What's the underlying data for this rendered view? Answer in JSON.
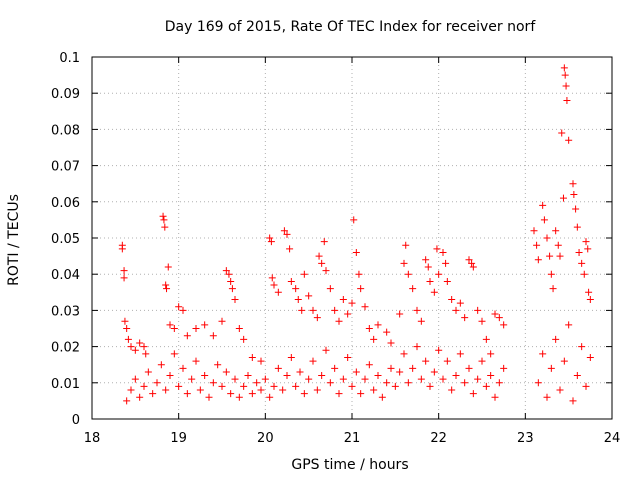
{
  "chart_data": {
    "type": "scatter",
    "title": "Day 169 of 2015, Rate Of TEC Index for receiver norf",
    "xlabel": "GPS time / hours",
    "ylabel": "ROTI / TECUs",
    "xlim": [
      18,
      24
    ],
    "ylim": [
      0,
      0.1
    ],
    "x_ticks": [
      18,
      19,
      20,
      21,
      22,
      23,
      24
    ],
    "x_tick_labels": [
      "18",
      "19",
      "20",
      "21",
      "22",
      "23",
      "24"
    ],
    "y_ticks": [
      0,
      0.01,
      0.02,
      0.03,
      0.04,
      0.05,
      0.06,
      0.07,
      0.08,
      0.09,
      0.1
    ],
    "y_tick_labels": [
      "0",
      "0.01",
      "0.02",
      "0.03",
      "0.04",
      "0.05",
      "0.06",
      "0.07",
      "0.08",
      "0.09",
      "0.1"
    ],
    "grid": true,
    "marker": "plus",
    "marker_color": "#ff0000",
    "series": [
      {
        "name": "ROTI",
        "color": "#ff0000",
        "points": [
          [
            18.35,
            0.048
          ],
          [
            18.35,
            0.047
          ],
          [
            18.37,
            0.041
          ],
          [
            18.37,
            0.039
          ],
          [
            18.38,
            0.027
          ],
          [
            18.4,
            0.025
          ],
          [
            18.42,
            0.022
          ],
          [
            18.45,
            0.02
          ],
          [
            18.5,
            0.019
          ],
          [
            18.55,
            0.021
          ],
          [
            18.6,
            0.02
          ],
          [
            18.62,
            0.018
          ],
          [
            18.82,
            0.056
          ],
          [
            18.83,
            0.055
          ],
          [
            18.84,
            0.053
          ],
          [
            18.85,
            0.037
          ],
          [
            18.86,
            0.036
          ],
          [
            18.88,
            0.042
          ],
          [
            18.9,
            0.026
          ],
          [
            18.95,
            0.025
          ],
          [
            19.0,
            0.031
          ],
          [
            19.05,
            0.03
          ],
          [
            19.1,
            0.023
          ],
          [
            19.2,
            0.025
          ],
          [
            19.3,
            0.026
          ],
          [
            19.4,
            0.023
          ],
          [
            19.5,
            0.027
          ],
          [
            19.55,
            0.041
          ],
          [
            19.58,
            0.04
          ],
          [
            19.6,
            0.038
          ],
          [
            19.62,
            0.036
          ],
          [
            19.65,
            0.033
          ],
          [
            19.7,
            0.025
          ],
          [
            19.75,
            0.022
          ],
          [
            19.85,
            0.017
          ],
          [
            19.95,
            0.016
          ],
          [
            20.05,
            0.05
          ],
          [
            20.07,
            0.049
          ],
          [
            20.08,
            0.039
          ],
          [
            20.1,
            0.037
          ],
          [
            20.15,
            0.035
          ],
          [
            20.22,
            0.052
          ],
          [
            20.25,
            0.051
          ],
          [
            20.28,
            0.047
          ],
          [
            20.3,
            0.038
          ],
          [
            20.35,
            0.036
          ],
          [
            20.38,
            0.033
          ],
          [
            20.42,
            0.03
          ],
          [
            20.45,
            0.04
          ],
          [
            20.5,
            0.034
          ],
          [
            20.55,
            0.03
          ],
          [
            20.6,
            0.028
          ],
          [
            20.62,
            0.045
          ],
          [
            20.65,
            0.043
          ],
          [
            20.68,
            0.049
          ],
          [
            20.7,
            0.041
          ],
          [
            20.75,
            0.036
          ],
          [
            20.8,
            0.03
          ],
          [
            20.85,
            0.027
          ],
          [
            20.9,
            0.033
          ],
          [
            20.95,
            0.029
          ],
          [
            21.0,
            0.032
          ],
          [
            21.02,
            0.055
          ],
          [
            21.05,
            0.046
          ],
          [
            21.08,
            0.04
          ],
          [
            21.1,
            0.036
          ],
          [
            21.15,
            0.031
          ],
          [
            21.2,
            0.025
          ],
          [
            21.25,
            0.022
          ],
          [
            21.3,
            0.026
          ],
          [
            21.4,
            0.024
          ],
          [
            21.45,
            0.021
          ],
          [
            21.55,
            0.029
          ],
          [
            21.6,
            0.043
          ],
          [
            21.62,
            0.048
          ],
          [
            21.65,
            0.04
          ],
          [
            21.7,
            0.036
          ],
          [
            21.75,
            0.03
          ],
          [
            21.8,
            0.027
          ],
          [
            21.85,
            0.044
          ],
          [
            21.88,
            0.042
          ],
          [
            21.9,
            0.038
          ],
          [
            21.95,
            0.035
          ],
          [
            21.98,
            0.047
          ],
          [
            22.0,
            0.04
          ],
          [
            22.05,
            0.046
          ],
          [
            22.08,
            0.043
          ],
          [
            22.1,
            0.038
          ],
          [
            22.15,
            0.033
          ],
          [
            22.2,
            0.03
          ],
          [
            22.25,
            0.032
          ],
          [
            22.3,
            0.028
          ],
          [
            22.35,
            0.044
          ],
          [
            22.38,
            0.043
          ],
          [
            22.4,
            0.042
          ],
          [
            22.45,
            0.03
          ],
          [
            22.5,
            0.027
          ],
          [
            22.55,
            0.022
          ],
          [
            22.6,
            0.018
          ],
          [
            22.65,
            0.029
          ],
          [
            22.7,
            0.028
          ],
          [
            22.75,
            0.026
          ],
          [
            23.1,
            0.052
          ],
          [
            23.13,
            0.048
          ],
          [
            23.15,
            0.044
          ],
          [
            23.2,
            0.059
          ],
          [
            23.22,
            0.055
          ],
          [
            23.25,
            0.05
          ],
          [
            23.28,
            0.045
          ],
          [
            23.3,
            0.04
          ],
          [
            23.32,
            0.036
          ],
          [
            23.35,
            0.052
          ],
          [
            23.38,
            0.048
          ],
          [
            23.4,
            0.045
          ],
          [
            23.42,
            0.079
          ],
          [
            23.44,
            0.061
          ],
          [
            23.45,
            0.097
          ],
          [
            23.46,
            0.095
          ],
          [
            23.47,
            0.092
          ],
          [
            23.48,
            0.088
          ],
          [
            23.5,
            0.077
          ],
          [
            23.55,
            0.065
          ],
          [
            23.56,
            0.062
          ],
          [
            23.58,
            0.058
          ],
          [
            23.6,
            0.053
          ],
          [
            23.62,
            0.046
          ],
          [
            23.65,
            0.043
          ],
          [
            23.68,
            0.04
          ],
          [
            23.7,
            0.049
          ],
          [
            23.72,
            0.047
          ],
          [
            23.73,
            0.035
          ],
          [
            23.75,
            0.033
          ],
          [
            18.4,
            0.005
          ],
          [
            18.45,
            0.008
          ],
          [
            18.5,
            0.011
          ],
          [
            18.55,
            0.006
          ],
          [
            18.6,
            0.009
          ],
          [
            18.65,
            0.013
          ],
          [
            18.7,
            0.007
          ],
          [
            18.75,
            0.01
          ],
          [
            18.8,
            0.015
          ],
          [
            18.85,
            0.008
          ],
          [
            18.9,
            0.012
          ],
          [
            18.95,
            0.018
          ],
          [
            19.0,
            0.009
          ],
          [
            19.05,
            0.014
          ],
          [
            19.1,
            0.007
          ],
          [
            19.15,
            0.011
          ],
          [
            19.2,
            0.016
          ],
          [
            19.25,
            0.008
          ],
          [
            19.3,
            0.012
          ],
          [
            19.35,
            0.006
          ],
          [
            19.4,
            0.01
          ],
          [
            19.45,
            0.015
          ],
          [
            19.5,
            0.009
          ],
          [
            19.55,
            0.013
          ],
          [
            19.6,
            0.007
          ],
          [
            19.65,
            0.011
          ],
          [
            19.7,
            0.006
          ],
          [
            19.75,
            0.009
          ],
          [
            19.8,
            0.012
          ],
          [
            19.85,
            0.007
          ],
          [
            19.9,
            0.01
          ],
          [
            19.95,
            0.008
          ],
          [
            20.0,
            0.011
          ],
          [
            20.05,
            0.006
          ],
          [
            20.1,
            0.009
          ],
          [
            20.15,
            0.014
          ],
          [
            20.2,
            0.008
          ],
          [
            20.25,
            0.012
          ],
          [
            20.3,
            0.017
          ],
          [
            20.35,
            0.009
          ],
          [
            20.4,
            0.013
          ],
          [
            20.45,
            0.007
          ],
          [
            20.5,
            0.011
          ],
          [
            20.55,
            0.016
          ],
          [
            20.6,
            0.008
          ],
          [
            20.65,
            0.012
          ],
          [
            20.7,
            0.019
          ],
          [
            20.75,
            0.01
          ],
          [
            20.8,
            0.014
          ],
          [
            20.85,
            0.007
          ],
          [
            20.9,
            0.011
          ],
          [
            20.95,
            0.017
          ],
          [
            21.0,
            0.009
          ],
          [
            21.05,
            0.013
          ],
          [
            21.1,
            0.007
          ],
          [
            21.15,
            0.011
          ],
          [
            21.2,
            0.015
          ],
          [
            21.25,
            0.008
          ],
          [
            21.3,
            0.012
          ],
          [
            21.35,
            0.006
          ],
          [
            21.4,
            0.01
          ],
          [
            21.45,
            0.014
          ],
          [
            21.5,
            0.009
          ],
          [
            21.55,
            0.013
          ],
          [
            21.6,
            0.018
          ],
          [
            21.65,
            0.01
          ],
          [
            21.7,
            0.014
          ],
          [
            21.75,
            0.02
          ],
          [
            21.8,
            0.011
          ],
          [
            21.85,
            0.016
          ],
          [
            21.9,
            0.009
          ],
          [
            21.95,
            0.013
          ],
          [
            22.0,
            0.019
          ],
          [
            22.05,
            0.011
          ],
          [
            22.1,
            0.016
          ],
          [
            22.15,
            0.008
          ],
          [
            22.2,
            0.012
          ],
          [
            22.25,
            0.018
          ],
          [
            22.3,
            0.01
          ],
          [
            22.35,
            0.014
          ],
          [
            22.4,
            0.007
          ],
          [
            22.45,
            0.011
          ],
          [
            22.5,
            0.016
          ],
          [
            22.55,
            0.009
          ],
          [
            22.6,
            0.012
          ],
          [
            22.65,
            0.006
          ],
          [
            22.7,
            0.01
          ],
          [
            22.75,
            0.014
          ],
          [
            23.15,
            0.01
          ],
          [
            23.2,
            0.018
          ],
          [
            23.25,
            0.006
          ],
          [
            23.3,
            0.014
          ],
          [
            23.35,
            0.022
          ],
          [
            23.4,
            0.008
          ],
          [
            23.45,
            0.016
          ],
          [
            23.5,
            0.026
          ],
          [
            23.55,
            0.005
          ],
          [
            23.6,
            0.012
          ],
          [
            23.65,
            0.02
          ],
          [
            23.7,
            0.009
          ],
          [
            23.75,
            0.017
          ]
        ]
      }
    ]
  }
}
